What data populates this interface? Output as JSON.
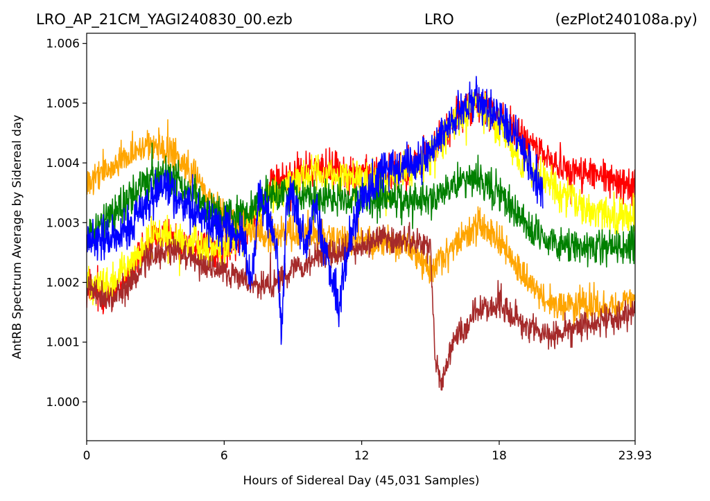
{
  "chart_data": {
    "type": "line",
    "title_left": "LRO_AP_21CM_YAGI240830_00.ezb",
    "title_center": "LRO",
    "title_right": "(ezPlot240108a.py)",
    "xlabel": "Hours of Sidereal Day  (45,031 Samples)",
    "ylabel": "AntRB Spectrum Average by Sidereal day",
    "xlim": [
      0,
      23.93
    ],
    "ylim": [
      0.99935,
      1.00617
    ],
    "x_ticks": [
      0,
      6,
      12,
      18,
      23.93
    ],
    "x_tick_labels": [
      "0",
      "6",
      "12",
      "18",
      "23.93"
    ],
    "y_ticks": [
      1.0,
      1.001,
      1.002,
      1.003,
      1.004,
      1.005,
      1.006
    ],
    "y_tick_labels": [
      "1.000",
      "1.001",
      "1.002",
      "1.003",
      "1.004",
      "1.005",
      "1.006"
    ],
    "grid": false,
    "legend": "none",
    "series": [
      {
        "color": "#ff0000",
        "x": [
          0,
          1,
          2,
          3,
          4,
          5,
          6,
          7,
          8,
          9,
          10,
          11,
          12,
          13,
          14,
          15,
          16,
          17,
          18,
          19,
          20,
          21,
          22,
          23,
          23.93
        ],
        "y": [
          1.00185,
          1.0018,
          1.0022,
          1.0028,
          1.0027,
          1.0026,
          1.0025,
          1.0029,
          1.0036,
          1.0038,
          1.0039,
          1.0039,
          1.0038,
          1.0038,
          1.0039,
          1.0042,
          1.0047,
          1.005,
          1.0048,
          1.0044,
          1.0041,
          1.0039,
          1.0038,
          1.0037,
          1.0036
        ],
        "noise": 0.00045
      },
      {
        "color": "#ffff00",
        "x": [
          0,
          1,
          2,
          3,
          4,
          5,
          6,
          7,
          8,
          9,
          10,
          11,
          12,
          13,
          14,
          15,
          16,
          17,
          18,
          19,
          20,
          21,
          22,
          23,
          23.93
        ],
        "y": [
          1.002,
          1.00195,
          1.0023,
          1.0028,
          1.0027,
          1.0026,
          1.0026,
          1.0029,
          1.0035,
          1.0037,
          1.0038,
          1.0038,
          1.0037,
          1.0037,
          1.0038,
          1.0041,
          1.0047,
          1.005,
          1.0046,
          1.004,
          1.0037,
          1.0034,
          1.0032,
          1.0031,
          1.0031
        ],
        "noise": 0.00045
      },
      {
        "color": "#ffa500",
        "x": [
          0,
          1,
          2,
          3,
          4,
          5,
          6,
          7,
          8,
          9,
          10,
          11,
          12,
          13,
          14,
          15,
          16,
          17,
          18,
          19,
          20,
          21,
          22,
          23,
          23.93
        ],
        "y": [
          1.0036,
          1.0039,
          1.0042,
          1.0043,
          1.0041,
          1.0036,
          1.0031,
          1.0029,
          1.0028,
          1.0028,
          1.0028,
          1.0027,
          1.0027,
          1.0027,
          1.0026,
          1.0022,
          1.0026,
          1.003,
          1.0027,
          1.0021,
          1.0017,
          1.0016,
          1.0016,
          1.0016,
          1.0017
        ],
        "noise": 0.0004
      },
      {
        "color": "#008000",
        "x": [
          0,
          1,
          2,
          3,
          4,
          5,
          6,
          7,
          8,
          9,
          10,
          11,
          12,
          13,
          14,
          15,
          16,
          17,
          18,
          19,
          20,
          21,
          22,
          23,
          23.93
        ],
        "y": [
          1.0028,
          1.0031,
          1.0035,
          1.0038,
          1.0037,
          1.0033,
          1.0031,
          1.0032,
          1.0035,
          1.0035,
          1.0034,
          1.0034,
          1.0034,
          1.0034,
          1.0034,
          1.0034,
          1.0036,
          1.0038,
          1.0035,
          1.003,
          1.0027,
          1.0026,
          1.0026,
          1.0026,
          1.0026
        ],
        "noise": 0.00045
      },
      {
        "color": "#a52a2a",
        "x": [
          0,
          1,
          2,
          3,
          4,
          5,
          6,
          7,
          8,
          9,
          10,
          11,
          12,
          13,
          14,
          15,
          15.2,
          15.5,
          16,
          17,
          18,
          19,
          20,
          21,
          22,
          23,
          23.93
        ],
        "y": [
          1.0019,
          1.0017,
          1.002,
          1.0025,
          1.0025,
          1.0023,
          1.0022,
          1.002,
          1.0019,
          1.0022,
          1.0024,
          1.0025,
          1.0026,
          1.0027,
          1.0027,
          1.0026,
          1.0007,
          1.0003,
          1.001,
          1.0015,
          1.0016,
          1.0013,
          1.0011,
          1.0012,
          1.0013,
          1.0014,
          1.0015
        ],
        "noise": 0.00035
      },
      {
        "color": "#0000ff",
        "x": [
          0,
          1,
          2,
          3,
          3.5,
          4,
          5,
          6,
          6.8,
          7.2,
          7.5,
          8,
          8.3,
          8.5,
          8.7,
          9,
          9.5,
          10,
          10.5,
          11,
          11.5,
          12,
          13,
          14,
          15,
          16,
          17,
          18,
          19,
          19.5,
          19.9
        ],
        "y": [
          1.0027,
          1.0027,
          1.003,
          1.0035,
          1.0036,
          1.0034,
          1.0031,
          1.0029,
          1.0028,
          1.002,
          1.0034,
          1.003,
          1.0026,
          1.001,
          1.0032,
          1.0035,
          1.0026,
          1.0033,
          1.0024,
          1.0016,
          1.0028,
          1.0034,
          1.0039,
          1.0039,
          1.0042,
          1.0047,
          1.0051,
          1.0048,
          1.0043,
          1.0038,
          1.0035
        ],
        "noise": 0.0005
      }
    ]
  }
}
